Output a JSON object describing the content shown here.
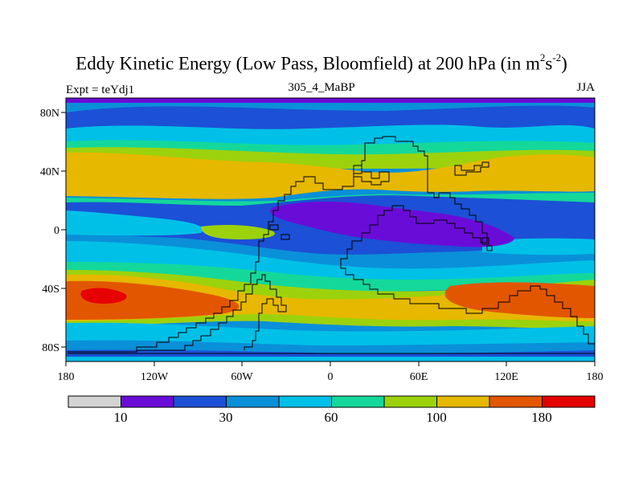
{
  "title": {
    "prefix": "Eddy Kinetic Energy (Low Pass, Bloomfield) at 200 hPa (in m",
    "sup1": "2",
    "mid": "s",
    "sup2": "-2",
    "suffix": ")"
  },
  "subtitle": "305_4_MaBP",
  "expt_label": "Expt = teYdj1",
  "season": "JJA",
  "axes": {
    "lon_ticks": [
      "180",
      "120W",
      "60W",
      "0",
      "60E",
      "120E",
      "180"
    ],
    "lat_ticks": [
      "80N",
      "40N",
      "0",
      "40S",
      "80S"
    ]
  },
  "colorbar": {
    "colors": [
      "#d3d3d3",
      "#6a0cd8",
      "#1c50d6",
      "#0a90d8",
      "#00c0e8",
      "#14d89a",
      "#9cd20c",
      "#e6b800",
      "#e25600",
      "#e60000"
    ],
    "labels": [
      "10",
      "30",
      "60",
      "100",
      "180"
    ]
  },
  "palette": {
    "bg": "#0a90d8",
    "purple": "#6a0cd8",
    "blue": "#1c50d6",
    "cyan": "#00c0e8",
    "teal": "#14d89a",
    "green": "#9cd20c",
    "yellow": "#e6b800",
    "orange": "#e25600",
    "red": "#e60000"
  }
}
